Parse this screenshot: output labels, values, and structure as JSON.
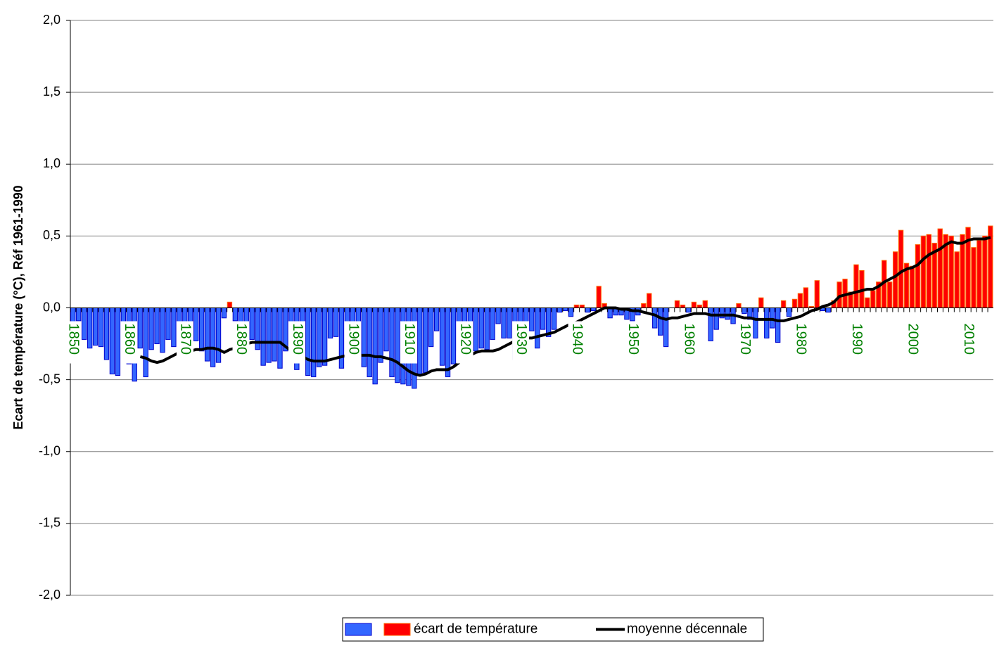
{
  "chart_data": {
    "type": "bar",
    "y_label": "Ecart de température (°C), Réf 1961-1990",
    "categories": [
      "1850",
      null,
      null,
      null,
      null,
      null,
      null,
      null,
      null,
      null,
      "1860",
      null,
      null,
      null,
      null,
      null,
      null,
      null,
      null,
      null,
      "1870",
      null,
      null,
      null,
      null,
      null,
      null,
      null,
      null,
      null,
      "1880",
      null,
      null,
      null,
      null,
      null,
      null,
      null,
      null,
      null,
      "1890",
      null,
      null,
      null,
      null,
      null,
      null,
      null,
      null,
      null,
      "1900",
      null,
      null,
      null,
      null,
      null,
      null,
      null,
      null,
      null,
      "1910",
      null,
      null,
      null,
      null,
      null,
      null,
      null,
      null,
      null,
      "1920",
      null,
      null,
      null,
      null,
      null,
      null,
      null,
      null,
      null,
      "1930",
      null,
      null,
      null,
      null,
      null,
      null,
      null,
      null,
      null,
      "1940",
      null,
      null,
      null,
      null,
      null,
      null,
      null,
      null,
      null,
      "1950",
      null,
      null,
      null,
      null,
      null,
      null,
      null,
      null,
      null,
      "1960",
      null,
      null,
      null,
      null,
      null,
      null,
      null,
      null,
      null,
      "1970",
      null,
      null,
      null,
      null,
      null,
      null,
      null,
      null,
      null,
      "1980",
      null,
      null,
      null,
      null,
      null,
      null,
      null,
      null,
      null,
      "1990",
      null,
      null,
      null,
      null,
      null,
      null,
      null,
      null,
      null,
      "2000",
      null,
      null,
      null,
      null,
      null,
      null,
      null,
      null,
      null,
      "2010",
      null,
      null,
      null,
      null
    ],
    "category_label_color": "#008000",
    "series": [
      {
        "name": "écart de température",
        "color": "#ff0000",
        "edge_color": "#ff6600",
        "negative_color": "#3366ff",
        "negative_edge_color": "#0000cc",
        "values": [
          -0.38,
          -0.09,
          -0.22,
          -0.28,
          -0.26,
          -0.27,
          -0.36,
          -0.46,
          -0.47,
          -0.3,
          -0.39,
          -0.51,
          -0.28,
          -0.48,
          -0.29,
          -0.25,
          -0.31,
          -0.22,
          -0.27,
          -0.2,
          -0.2,
          -0.24,
          -0.23,
          -0.3,
          -0.37,
          -0.41,
          -0.38,
          -0.07,
          0.04,
          -0.09,
          -0.2,
          -0.15,
          -0.22,
          -0.29,
          -0.4,
          -0.38,
          -0.37,
          -0.42,
          -0.3,
          -0.25,
          -0.43,
          -0.3,
          -0.47,
          -0.48,
          -0.41,
          -0.4,
          -0.21,
          -0.2,
          -0.42,
          -0.3,
          -0.2,
          -0.25,
          -0.41,
          -0.48,
          -0.53,
          -0.38,
          -0.3,
          -0.48,
          -0.52,
          -0.53,
          -0.54,
          -0.56,
          -0.46,
          -0.45,
          -0.27,
          -0.16,
          -0.4,
          -0.48,
          -0.39,
          -0.3,
          -0.28,
          -0.21,
          -0.3,
          -0.28,
          -0.29,
          -0.22,
          -0.11,
          -0.21,
          -0.21,
          -0.36,
          -0.16,
          -0.1,
          -0.16,
          -0.28,
          -0.15,
          -0.2,
          -0.15,
          -0.03,
          -0.02,
          -0.06,
          0.02,
          0.02,
          -0.03,
          -0.02,
          0.15,
          0.03,
          -0.07,
          -0.05,
          -0.05,
          -0.08,
          -0.09,
          -0.05,
          0.03,
          0.1,
          -0.14,
          -0.19,
          -0.27,
          0.0,
          0.05,
          0.02,
          -0.03,
          0.04,
          0.02,
          0.05,
          -0.23,
          -0.15,
          -0.07,
          -0.08,
          -0.11,
          0.03,
          -0.04,
          -0.08,
          -0.21,
          0.07,
          -0.21,
          -0.14,
          -0.24,
          0.05,
          -0.06,
          0.06,
          0.1,
          0.14,
          0.01,
          0.19,
          -0.02,
          -0.03,
          0.05,
          0.18,
          0.2,
          0.11,
          0.3,
          0.26,
          0.07,
          0.12,
          0.18,
          0.33,
          0.18,
          0.39,
          0.54,
          0.31,
          0.29,
          0.44,
          0.5,
          0.51,
          0.45,
          0.55,
          0.51,
          0.5,
          0.39,
          0.51,
          0.56,
          0.42,
          0.47,
          0.5,
          0.57
        ]
      },
      {
        "name": "moyenne décennale",
        "type": "line",
        "color": "#000000",
        "values": [
          null,
          null,
          null,
          null,
          null,
          null,
          null,
          null,
          null,
          null,
          null,
          null,
          -0.34,
          -0.35,
          -0.37,
          -0.38,
          -0.37,
          -0.35,
          -0.33,
          -0.31,
          -0.3,
          -0.3,
          -0.29,
          -0.29,
          -0.28,
          -0.28,
          -0.29,
          -0.31,
          -0.29,
          -0.28,
          -0.27,
          -0.25,
          -0.24,
          -0.24,
          -0.24,
          -0.24,
          -0.24,
          -0.24,
          -0.27,
          -0.3,
          -0.32,
          -0.34,
          -0.36,
          -0.37,
          -0.37,
          -0.37,
          -0.36,
          -0.35,
          -0.34,
          -0.33,
          -0.33,
          -0.33,
          -0.33,
          -0.33,
          -0.34,
          -0.34,
          -0.35,
          -0.36,
          -0.38,
          -0.41,
          -0.44,
          -0.46,
          -0.47,
          -0.46,
          -0.44,
          -0.43,
          -0.43,
          -0.43,
          -0.41,
          -0.38,
          -0.36,
          -0.33,
          -0.31,
          -0.3,
          -0.3,
          -0.3,
          -0.29,
          -0.27,
          -0.25,
          -0.23,
          -0.22,
          -0.21,
          -0.21,
          -0.2,
          -0.19,
          -0.18,
          -0.17,
          -0.15,
          -0.13,
          -0.11,
          -0.1,
          -0.08,
          -0.06,
          -0.04,
          -0.02,
          0.0,
          0.0,
          0.0,
          -0.01,
          -0.01,
          -0.02,
          -0.02,
          -0.03,
          -0.04,
          -0.05,
          -0.07,
          -0.08,
          -0.07,
          -0.07,
          -0.06,
          -0.05,
          -0.04,
          -0.04,
          -0.04,
          -0.05,
          -0.05,
          -0.05,
          -0.05,
          -0.05,
          -0.06,
          -0.07,
          -0.07,
          -0.08,
          -0.08,
          -0.08,
          -0.08,
          -0.09,
          -0.09,
          -0.08,
          -0.07,
          -0.06,
          -0.04,
          -0.02,
          -0.01,
          0.01,
          0.02,
          0.04,
          0.08,
          0.09,
          0.1,
          0.11,
          0.12,
          0.13,
          0.13,
          0.15,
          0.18,
          0.2,
          0.22,
          0.25,
          0.27,
          0.28,
          0.3,
          0.34,
          0.37,
          0.39,
          0.41,
          0.44,
          0.46,
          0.45,
          0.45,
          0.47,
          0.48,
          0.48,
          0.48,
          0.49
        ]
      }
    ],
    "ylim": [
      -2.0,
      2.0
    ],
    "yticks": [
      {
        "value": -2.0,
        "label": "-2,0"
      },
      {
        "value": -1.5,
        "label": "-1,5"
      },
      {
        "value": -1.0,
        "label": "-1,0"
      },
      {
        "value": -0.5,
        "label": "-0,5"
      },
      {
        "value": 0.0,
        "label": "0,0"
      },
      {
        "value": 0.5,
        "label": "0,5"
      },
      {
        "value": 1.0,
        "label": "1,0"
      },
      {
        "value": 1.5,
        "label": "1,5"
      },
      {
        "value": 2.0,
        "label": "2,0"
      }
    ],
    "grid": true,
    "legend": "bottom"
  }
}
